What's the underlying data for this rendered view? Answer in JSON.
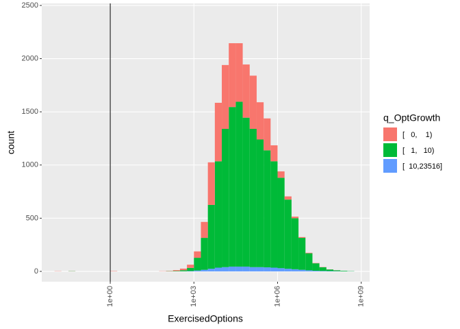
{
  "chart_data": {
    "type": "histogram",
    "x_label": "ExercisedOptions",
    "y_label": "count",
    "legend_title": "q_OptGrowth",
    "x_log": true,
    "grid": true,
    "stacked": true,
    "legend_position": "right",
    "bins": [
      0.01,
      0.017783,
      0.031623,
      0.056234,
      0.1,
      0.17783,
      0.31623,
      0.56234,
      1,
      1.7783,
      3.1623,
      5.6234,
      10,
      17.783,
      31.623,
      56.234,
      100,
      177.83,
      316.23,
      562.34,
      1000,
      1778.3,
      3162.3,
      5623.4,
      10000,
      17783,
      31623,
      56234,
      100000,
      177830,
      316230,
      562340,
      1000000,
      1778300,
      3162300,
      5623400,
      10000000,
      17783000,
      31623000,
      56234000,
      100000000,
      177830000,
      316230000,
      562340000,
      1000000000
    ],
    "series": [
      {
        "name": "[   0,    1)",
        "color": "#F8766D",
        "values": [
          2,
          0,
          1,
          0,
          0,
          0,
          0,
          0,
          3,
          0,
          0,
          0,
          0,
          0,
          0,
          2,
          3,
          8,
          15,
          30,
          60,
          150,
          400,
          550,
          600,
          600,
          550,
          500,
          500,
          350,
          300,
          150,
          60,
          30,
          15,
          8,
          5,
          3,
          2,
          1,
          1,
          0,
          0,
          0
        ]
      },
      {
        "name": "[   1,   10)",
        "color": "#00BA38",
        "values": [
          0,
          0,
          2,
          0,
          0,
          0,
          0,
          0,
          0,
          0,
          0,
          0,
          0,
          0,
          0,
          0,
          2,
          4,
          10,
          30,
          120,
          300,
          600,
          1000,
          1300,
          1500,
          1550,
          1400,
          1300,
          1200,
          1100,
          1000,
          850,
          650,
          480,
          300,
          160,
          70,
          35,
          15,
          8,
          5,
          2,
          0
        ]
      },
      {
        "name": "[  10,23516]",
        "color": "#619CFF",
        "values": [
          0,
          0,
          0,
          0,
          0,
          0,
          0,
          0,
          0,
          0,
          0,
          0,
          0,
          0,
          0,
          0,
          0,
          0,
          1,
          3,
          8,
          15,
          25,
          35,
          40,
          45,
          45,
          45,
          40,
          40,
          38,
          35,
          30,
          25,
          20,
          15,
          10,
          6,
          4,
          3,
          2,
          1,
          1,
          0
        ]
      }
    ],
    "reference_line": {
      "x": 1,
      "color": "#000000"
    },
    "xlim": [
      0.0035,
      2000000000
    ],
    "xticks": [
      {
        "value": 1,
        "label": "1e+00"
      },
      {
        "value": 1000,
        "label": "1e+03"
      },
      {
        "value": 1000000,
        "label": "1e+06"
      },
      {
        "value": 1000000000,
        "label": "1e+09"
      }
    ],
    "ylim": [
      -97,
      2519
    ],
    "yticks": [
      0,
      500,
      1000,
      1500,
      2000,
      2500
    ]
  }
}
